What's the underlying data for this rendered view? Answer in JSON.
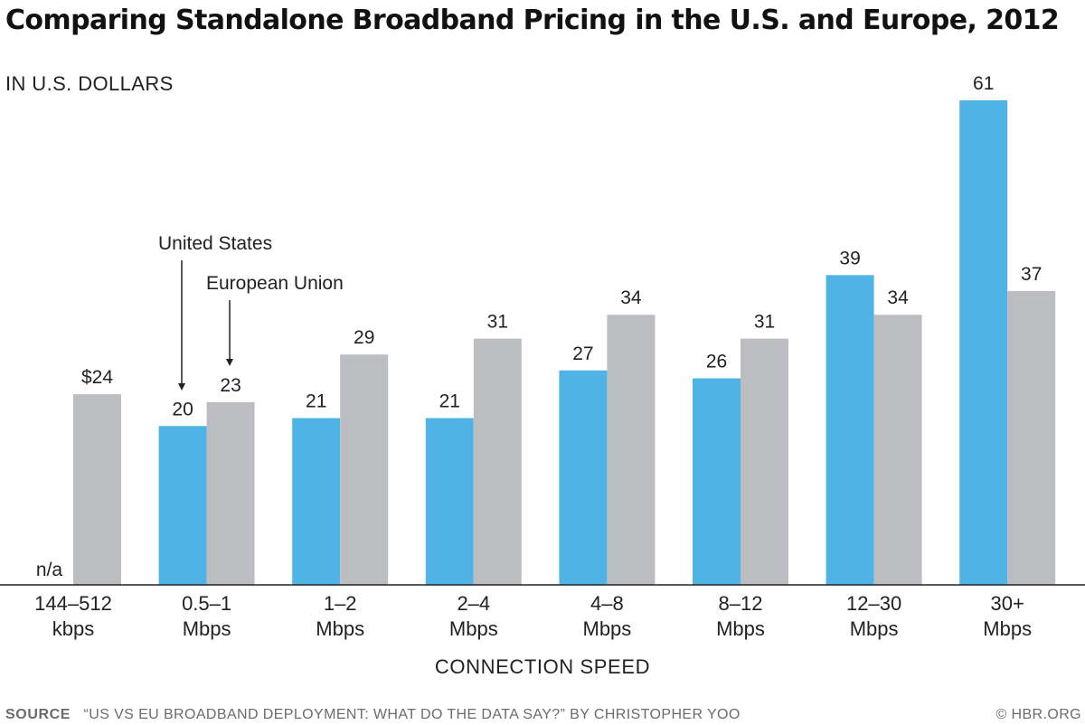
{
  "chart_data": {
    "type": "bar",
    "title": "Comparing Standalone Broadband Pricing in the U.S. and Europe, 2012",
    "units_label": "IN U.S. DOLLARS",
    "xlabel": "CONNECTION SPEED",
    "categories": [
      [
        "144–512",
        "kbps"
      ],
      [
        "0.5–1",
        "Mbps"
      ],
      [
        "1–2",
        "Mbps"
      ],
      [
        "2–4",
        "Mbps"
      ],
      [
        "4–8",
        "Mbps"
      ],
      [
        "8–12",
        "Mbps"
      ],
      [
        "12–30",
        "Mbps"
      ],
      [
        "30+",
        "Mbps"
      ]
    ],
    "series": [
      {
        "name": "United States",
        "color": "#4fb3e6",
        "values": [
          null,
          20,
          21,
          21,
          27,
          26,
          39,
          61
        ],
        "labels": [
          "n/a",
          "20",
          "21",
          "21",
          "27",
          "26",
          "39",
          "61"
        ]
      },
      {
        "name": "European Union",
        "color": "#bcbdc1",
        "values": [
          24,
          23,
          29,
          31,
          34,
          31,
          34,
          37
        ],
        "labels": [
          "$24",
          "23",
          "29",
          "31",
          "34",
          "31",
          "34",
          "37"
        ]
      }
    ],
    "ylim": [
      0,
      61
    ],
    "grid": false,
    "legend": "annotations with arrows"
  },
  "source": {
    "key": "SOURCE",
    "text": "“US VS EU BROADBAND DEPLOYMENT: WHAT DO THE DATA SAY?” BY CHRISTOPHER YOO",
    "credit": "© HBR.ORG"
  }
}
